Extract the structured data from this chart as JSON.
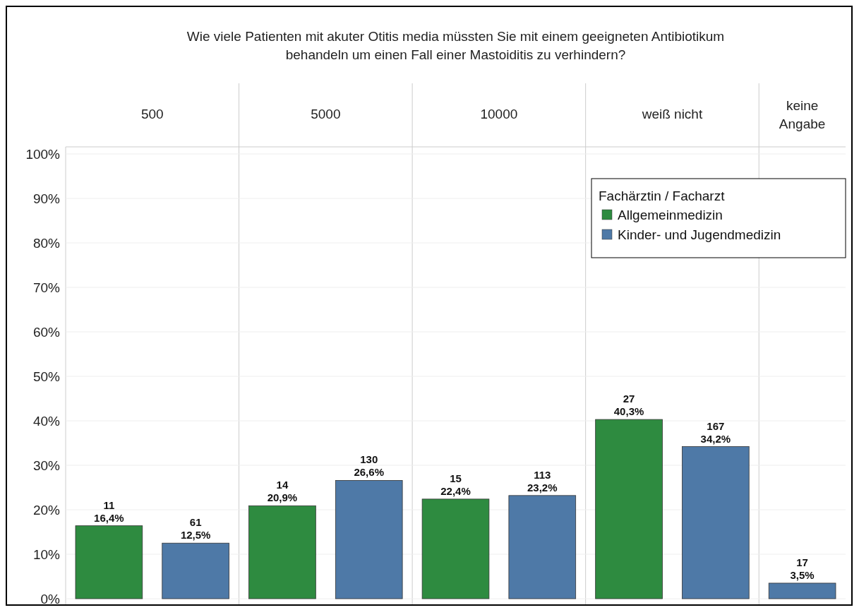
{
  "chart_data": {
    "type": "bar",
    "title": "Wie viele Patienten mit akuter Otitis media müssten Sie mit einem geeigneten Antibiotikum behandeln um einen Fall einer Mastoiditis zu verhindern?",
    "categories": [
      "500",
      "5000",
      "10000",
      "weiß nicht",
      "keine Angabe"
    ],
    "series": [
      {
        "name": "Allgemeinmedizin",
        "color": "#2e8b40",
        "values": [
          16.4,
          20.9,
          22.4,
          40.3,
          null
        ],
        "value_labels": [
          "11\n16,4%",
          "14\n20,9%",
          "15\n22,4%",
          "27\n40,3%",
          null
        ]
      },
      {
        "name": "Kinder- und Jugendmedizin",
        "color": "#4e79a7",
        "values": [
          12.5,
          26.6,
          23.2,
          34.2,
          3.5
        ],
        "value_labels": [
          "61\n12,5%",
          "130\n26,6%",
          "113\n23,2%",
          "167\n34,2%",
          "17\n3,5%"
        ]
      }
    ],
    "legend_title": "Fachärztin / Facharzt",
    "legend": "top right",
    "grid": "y",
    "ylim": [
      0,
      100
    ],
    "yticks": [
      {
        "value": 0,
        "label": "0%"
      },
      {
        "value": 10,
        "label": "10%"
      },
      {
        "value": 20,
        "label": "20%"
      },
      {
        "value": 30,
        "label": "30%"
      },
      {
        "value": 40,
        "label": "40%"
      },
      {
        "value": 50,
        "label": "50%"
      },
      {
        "value": 60,
        "label": "60%"
      },
      {
        "value": 70,
        "label": "70%"
      },
      {
        "value": 80,
        "label": "80%"
      },
      {
        "value": 90,
        "label": "90%"
      },
      {
        "value": 100,
        "label": "100%"
      }
    ]
  }
}
